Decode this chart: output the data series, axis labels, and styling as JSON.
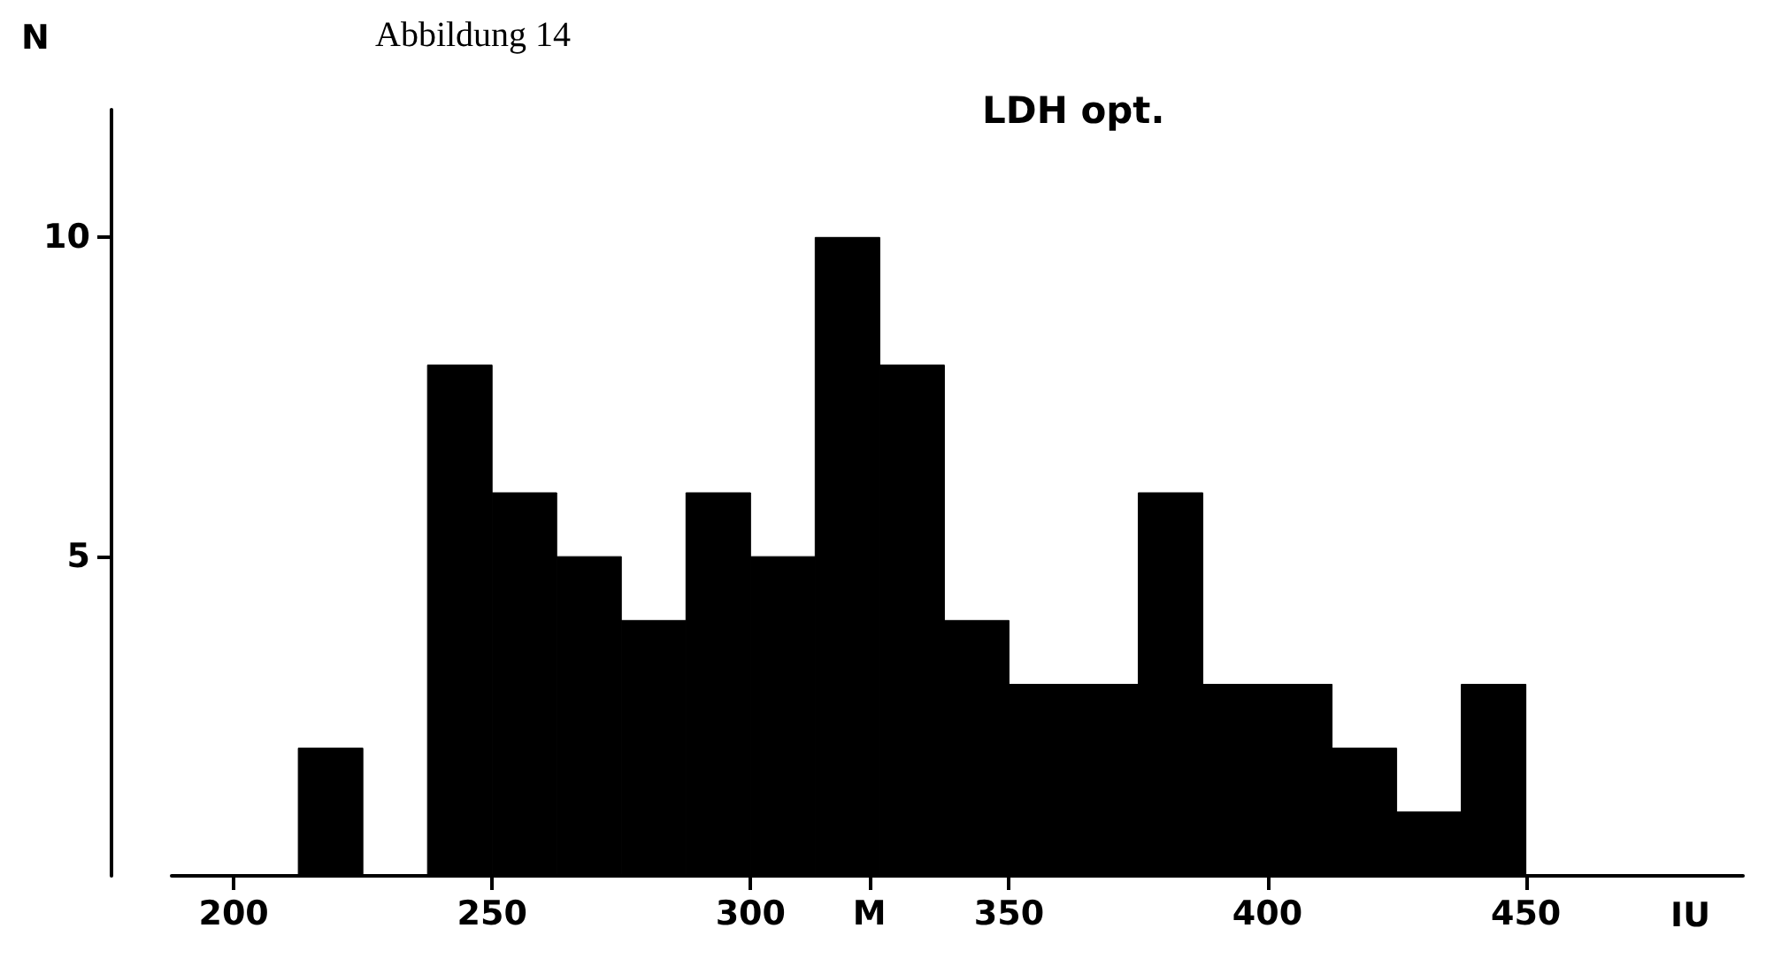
{
  "chart_data": {
    "type": "histogram",
    "title": "LDH opt.",
    "subtitle": "Abbildung 14",
    "xlabel": "IU",
    "ylabel": "N",
    "bins": [
      212.5,
      225,
      237.5,
      250,
      262.5,
      275,
      287.5,
      300,
      312.5,
      325,
      337.5,
      350,
      362.5,
      375,
      387.5,
      400,
      412.5,
      425,
      437.5,
      450
    ],
    "values": [
      2,
      0,
      8,
      6,
      5,
      4,
      6,
      5,
      10,
      8,
      4,
      3,
      3,
      6,
      3,
      3,
      2,
      1,
      3
    ],
    "color": "#000000",
    "xlim": [
      188,
      492
    ],
    "ylim": [
      0,
      12
    ],
    "xticks": [
      200,
      250,
      300,
      {
        "value": 323,
        "label": "M"
      },
      350,
      400,
      450
    ],
    "yticks": [
      5,
      10
    ]
  }
}
